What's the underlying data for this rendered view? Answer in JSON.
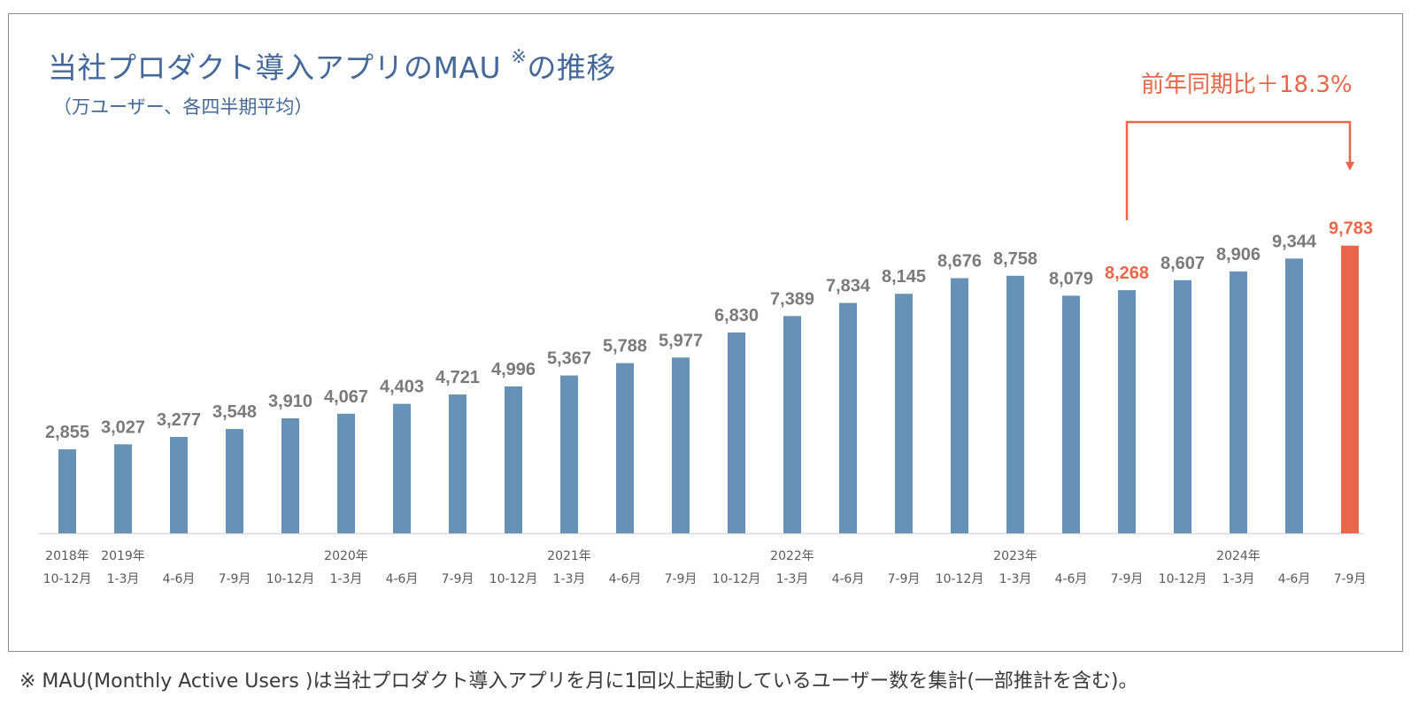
{
  "title": "当社プロダクト導入アプリのMAU",
  "title_note_mark": "※",
  "title_suffix": "の推移",
  "subtitle": "（万ユーザー、各四半期平均）",
  "callout": "前年同期比＋18.3%",
  "footnote": "※ MAU(Monthly Active Users )は当社プロダクト導入アプリを月に1回以上起動しているユーザー数を集計(一部推計を含む)。",
  "colors": {
    "bar": "#6692b7",
    "highlight": "#e8674a",
    "label": "#7a7a7a",
    "title": "#44689a"
  },
  "chart_data": {
    "type": "bar",
    "categories": [
      [
        "2018年",
        "10-12月"
      ],
      [
        "2019年",
        "1-3月"
      ],
      [
        "",
        "4-6月"
      ],
      [
        "",
        "7-9月"
      ],
      [
        "",
        "10-12月"
      ],
      [
        "2020年",
        "1-3月"
      ],
      [
        "",
        "4-6月"
      ],
      [
        "",
        "7-9月"
      ],
      [
        "",
        "10-12月"
      ],
      [
        "2021年",
        "1-3月"
      ],
      [
        "",
        "4-6月"
      ],
      [
        "",
        "7-9月"
      ],
      [
        "",
        "10-12月"
      ],
      [
        "2022年",
        "1-3月"
      ],
      [
        "",
        "4-6月"
      ],
      [
        "",
        "7-9月"
      ],
      [
        "",
        "10-12月"
      ],
      [
        "2023年",
        "1-3月"
      ],
      [
        "",
        "4-6月"
      ],
      [
        "",
        "7-9月"
      ],
      [
        "",
        "10-12月"
      ],
      [
        "2024年",
        "1-3月"
      ],
      [
        "",
        "4-6月"
      ],
      [
        "",
        "7-9月"
      ]
    ],
    "values": [
      2855,
      3027,
      3277,
      3548,
      3910,
      4067,
      4403,
      4721,
      4996,
      5367,
      5788,
      5977,
      6830,
      7389,
      7834,
      8145,
      8676,
      8758,
      8079,
      8268,
      8607,
      8906,
      9344,
      9783
    ],
    "value_labels": [
      "2,855",
      "3,027",
      "3,277",
      "3,548",
      "3,910",
      "4,067",
      "4,403",
      "4,721",
      "4,996",
      "5,367",
      "5,788",
      "5,977",
      "6,830",
      "7,389",
      "7,834",
      "8,145",
      "8,676",
      "8,758",
      "8,079",
      "8,268",
      "8,607",
      "8,906",
      "9,344",
      "9,783"
    ],
    "highlight_bar": 23,
    "highlight_label": 19,
    "comparison": {
      "from": 19,
      "to": 23
    },
    "ylim": [
      0,
      10000
    ],
    "grid": false
  }
}
